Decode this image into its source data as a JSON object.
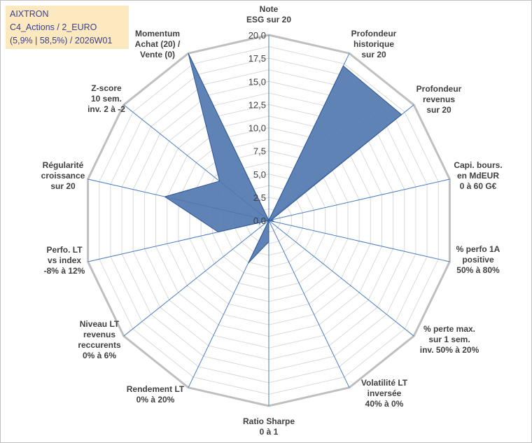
{
  "chart_data": {
    "type": "radar",
    "title_lines": [
      "AIXTRON",
      "C4_Actions / 2_EURO",
      "(5,9% | 58,5%) / 2026W01"
    ],
    "rlim": [
      0,
      20
    ],
    "tick_labels": [
      "0,0",
      "2,5",
      "5,0",
      "7,5",
      "10,0",
      "12,5",
      "15,0",
      "17,5",
      "20,0"
    ],
    "axes": [
      {
        "label": [
          "Note",
          "ESG sur 20"
        ],
        "value": 0
      },
      {
        "label": [
          "Profondeur",
          "historique",
          "sur 20"
        ],
        "value": 18.5
      },
      {
        "label": [
          "Profondeur",
          "revenus",
          "sur 20"
        ],
        "value": 18.3
      },
      {
        "label": [
          "Capi. bours.",
          "en MdEUR",
          "0 à 60 G€"
        ],
        "value": 0.3
      },
      {
        "label": [
          "% perfo 1A",
          "positive",
          "50% à 80%"
        ],
        "value": 0.6
      },
      {
        "label": [
          "% perte max.",
          "sur 1 sem.",
          "inv. 50% à 20%"
        ],
        "value": 0
      },
      {
        "label": [
          "Volatilité LT",
          "inversée",
          "40% à 0%"
        ],
        "value": 0
      },
      {
        "label": [
          "Ratio Sharpe",
          "0 à 1"
        ],
        "value": 2.3
      },
      {
        "label": [
          "Rendement LT",
          "0% à 20%"
        ],
        "value": 5.1
      },
      {
        "label": [
          "Niveau LT",
          "revenus",
          "reccurents",
          "0% à 6%"
        ],
        "value": 0
      },
      {
        "label": [
          "Perfo. LT",
          "vs index",
          "-8% à 12%"
        ],
        "value": 5.6
      },
      {
        "label": [
          "Régularité",
          "croissance",
          "sur 20"
        ],
        "value": 11.5
      },
      {
        "label": [
          "Z-score",
          "10 sem.",
          "inv. 2 à -2"
        ],
        "value": 6.8
      },
      {
        "label": [
          "Momentum",
          "Achat (20) /",
          "Vente (0)"
        ],
        "value": 20
      }
    ],
    "series": [
      {
        "values": [
          0,
          18.5,
          18.3,
          0.3,
          0.6,
          0,
          0,
          2.3,
          5.1,
          0,
          5.6,
          11.5,
          6.8,
          20
        ]
      }
    ],
    "colors": {
      "fill": "#4f76ad",
      "stroke": "#2e5597",
      "axis_line": "#4a7ec0",
      "grid": "#d9d9d9",
      "outer_ring": "#bfbfbf",
      "legend_bg": "#fde9c0",
      "legend_text": "#3a3f8c"
    }
  }
}
